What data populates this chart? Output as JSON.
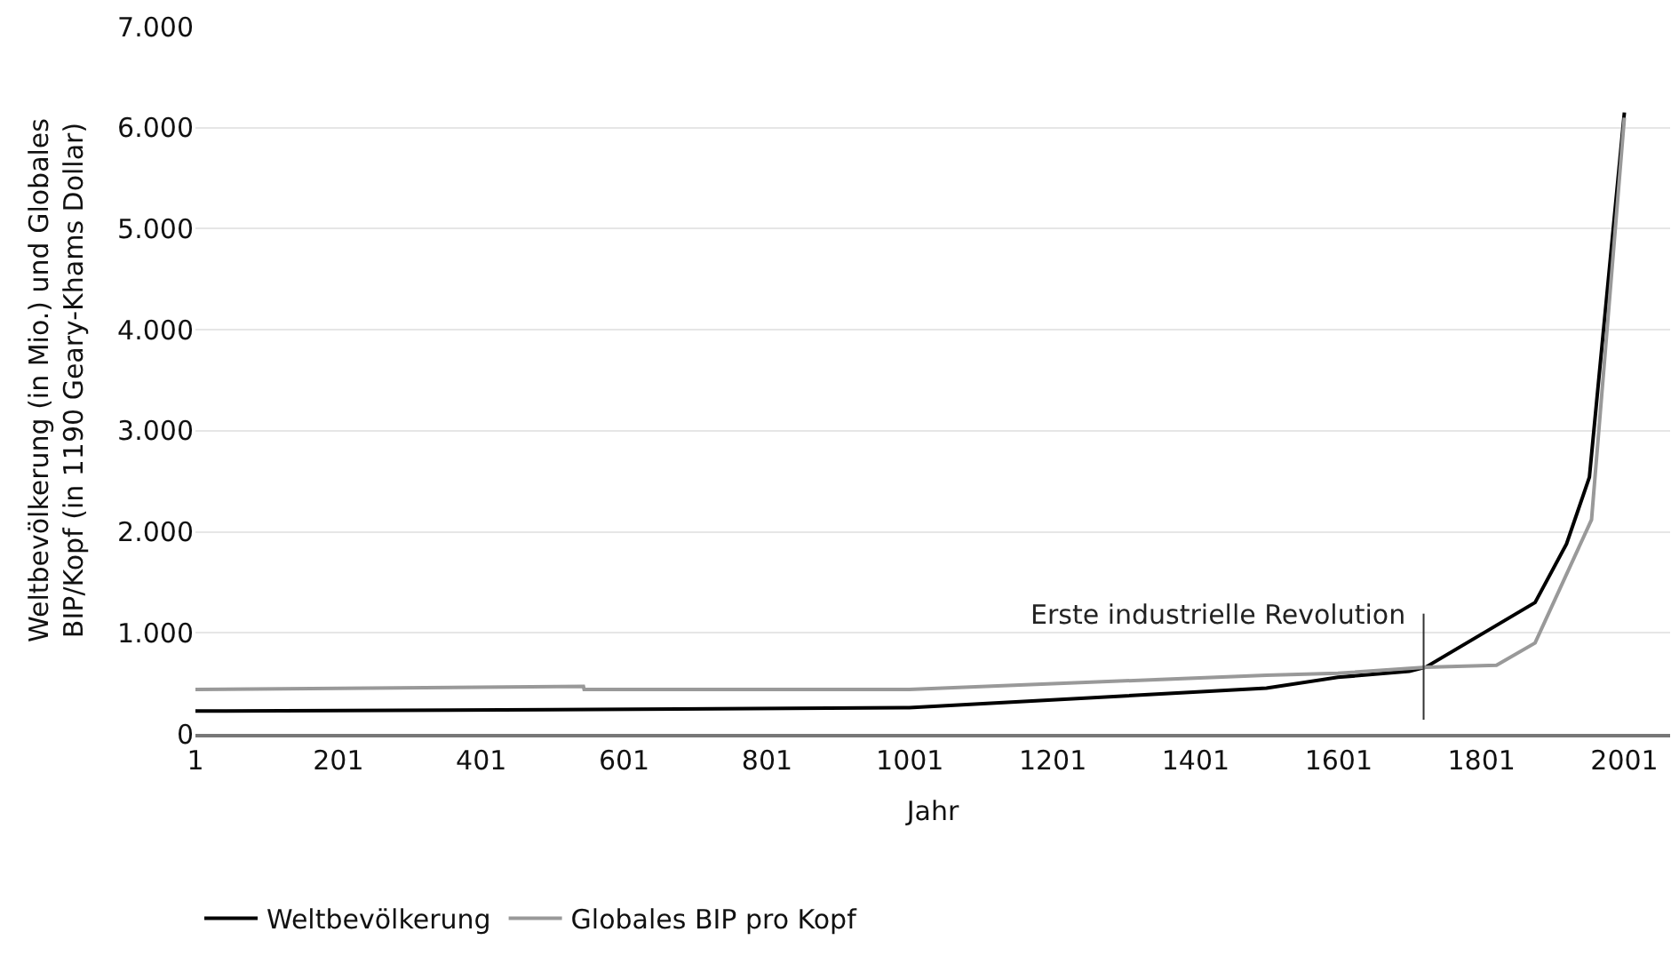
{
  "chart_data": {
    "type": "line",
    "xlabel": "Jahr",
    "ylabel": "Weltbevölkerung (in Mio.) und Globales\nBIP/Kopf (in 1190 Geary-Khams Dollar)",
    "series": [
      {
        "name": "Weltbevölkerung",
        "color": "#000000",
        "x": [
          1,
          500,
          1000,
          1500,
          1600,
          1700,
          1723,
          1876,
          1920,
          1952,
          2001
        ],
        "values": [
          226,
          240,
          260,
          452,
          560,
          620,
          660,
          1300,
          1880,
          2540,
          6150
        ]
      },
      {
        "name": "Globales BIP pro Kopf",
        "color": "#999999",
        "x": [
          1,
          544,
          545,
          1000,
          1500,
          1600,
          1723,
          1822,
          1876,
          1955,
          2001
        ],
        "values": [
          440,
          470,
          440,
          440,
          580,
          600,
          660,
          680,
          900,
          2120,
          6100
        ]
      }
    ],
    "xlim": [
      1,
      2065
    ],
    "xticks": [
      1,
      201,
      401,
      601,
      801,
      1001,
      1201,
      1401,
      1601,
      1801,
      2001
    ],
    "ylim": [
      0,
      7000
    ],
    "yticks": [
      {
        "value": 0,
        "label": "0"
      },
      {
        "value": 1000,
        "label": "1.000"
      },
      {
        "value": 2000,
        "label": "2.000"
      },
      {
        "value": 3000,
        "label": "3.000"
      },
      {
        "value": 4000,
        "label": "4.000"
      },
      {
        "value": 5000,
        "label": "5.000"
      },
      {
        "value": 6000,
        "label": "6.000"
      },
      {
        "value": 7000,
        "label": "7.000"
      }
    ],
    "ref_lines": [
      {
        "axis": "x",
        "value": 1720,
        "label": "Erste industrielle Revolution",
        "color": "#333333"
      }
    ],
    "grid": "y",
    "legend": "bottom left",
    "line_style": "solid",
    "marker": "none"
  }
}
